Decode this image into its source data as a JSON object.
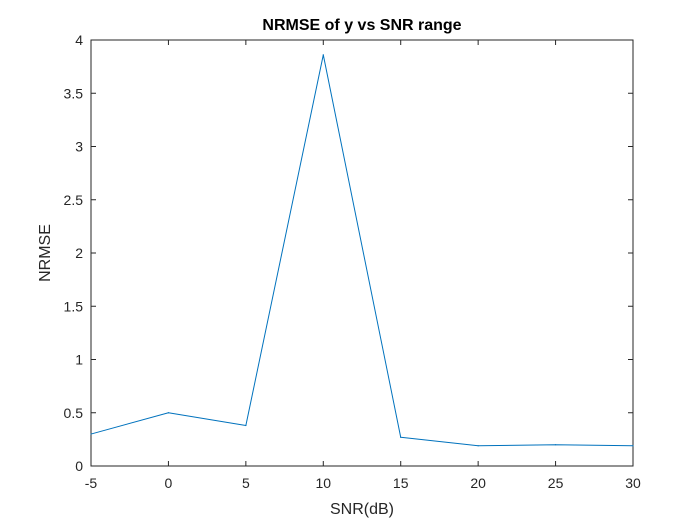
{
  "chart_data": {
    "type": "line",
    "title": "NRMSE of y vs SNR range",
    "xlabel": "SNR(dB)",
    "ylabel": "NRMSE",
    "xlim": [
      -5,
      30
    ],
    "ylim": [
      0,
      4
    ],
    "xticks": [
      "-5",
      "0",
      "5",
      "10",
      "15",
      "20",
      "25",
      "30"
    ],
    "yticks": [
      "0",
      "0.5",
      "1",
      "1.5",
      "2",
      "2.5",
      "3",
      "3.5",
      "4"
    ],
    "grid": false,
    "box": true,
    "series": [
      {
        "color": "#0072BD",
        "x": [
          -5,
          0,
          5,
          10,
          15,
          20,
          25,
          30
        ],
        "y": [
          0.3,
          0.5,
          0.38,
          3.86,
          0.27,
          0.19,
          0.2,
          0.19
        ]
      }
    ]
  }
}
